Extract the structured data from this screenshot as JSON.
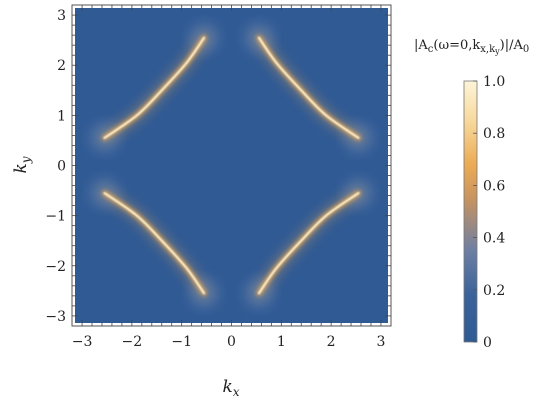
{
  "chart_data": {
    "type": "heatmap",
    "title": "",
    "xlabel": "k_x",
    "ylabel": "k_y",
    "xlim": [
      -3.14159,
      3.14159
    ],
    "ylim": [
      -3.14159,
      3.14159
    ],
    "x_ticks": [
      -3,
      -2,
      -1,
      0,
      1,
      2,
      3
    ],
    "y_ticks": [
      -3,
      -2,
      -1,
      0,
      1,
      2,
      3
    ],
    "x_tick_labels": [
      "−3",
      "−2",
      "−1",
      "0",
      "1",
      "2",
      "3"
    ],
    "y_tick_labels": [
      "−3",
      "−2",
      "−1",
      "0",
      "1",
      "2",
      "3"
    ],
    "grid": false,
    "description_of_data": "Fermi-arc spectral weight: bright arcs near |kx|+|ky|≈π in each quadrant",
    "arcs": [
      {
        "quadrant": "top-right",
        "points": [
          [
            0.55,
            2.55
          ],
          [
            0.9,
            2.05
          ],
          [
            1.4,
            1.5
          ],
          [
            1.9,
            1.0
          ],
          [
            2.55,
            0.55
          ]
        ]
      },
      {
        "quadrant": "top-left",
        "points": [
          [
            -0.55,
            2.55
          ],
          [
            -0.9,
            2.05
          ],
          [
            -1.4,
            1.5
          ],
          [
            -1.9,
            1.0
          ],
          [
            -2.55,
            0.55
          ]
        ]
      },
      {
        "quadrant": "bottom-left",
        "points": [
          [
            -0.55,
            -2.55
          ],
          [
            -0.9,
            -2.05
          ],
          [
            -1.4,
            -1.5
          ],
          [
            -1.9,
            -1.0
          ],
          [
            -2.55,
            -0.55
          ]
        ]
      },
      {
        "quadrant": "bottom-right",
        "points": [
          [
            0.55,
            -2.55
          ],
          [
            0.9,
            -2.05
          ],
          [
            1.4,
            -1.5
          ],
          [
            1.9,
            -1.0
          ],
          [
            2.55,
            -0.55
          ]
        ]
      }
    ],
    "colorbar": {
      "title": "|A_c(ω=0,k_{x,k_y})|/A_0",
      "title_parts": {
        "main": "|A",
        "sub1": "c",
        "mid": "(ω=0,k",
        "sub2": "x,k",
        "sub3": "y",
        "end": ")|/A",
        "sub4": "0"
      },
      "range": [
        0,
        1
      ],
      "ticks": [
        0,
        0.2,
        0.4,
        0.6,
        0.8,
        1.0
      ],
      "tick_labels": [
        "0",
        "0.2",
        "0.4",
        "0.6",
        "0.8",
        "1.0"
      ],
      "colors": [
        "#305a94",
        "#3a639b",
        "#6d7fa3",
        "#c89460",
        "#ecab55",
        "#f7d79a",
        "#fdf5d8"
      ]
    }
  },
  "colors": {
    "background": "#305a94",
    "arc_core": "#fdf5d8",
    "arc_glow": "#ecab55"
  }
}
